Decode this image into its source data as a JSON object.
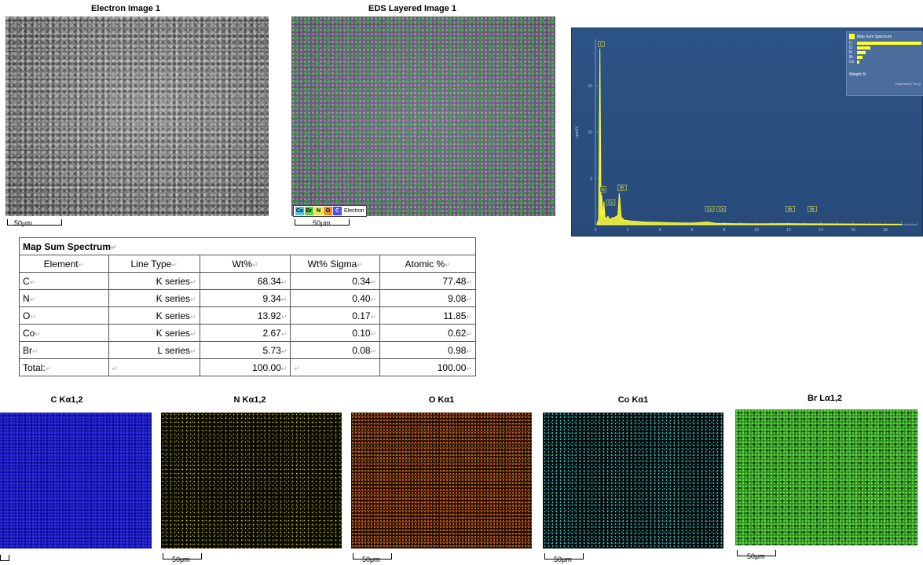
{
  "electron_image": {
    "title": "Electron Image 1",
    "scale": "50μm"
  },
  "eds_image": {
    "title": "EDS Layered Image 1",
    "scale": "50μm",
    "legend": [
      {
        "label": "Co",
        "color": "#49c6e6"
      },
      {
        "label": "Br",
        "color": "#58d24a"
      },
      {
        "label": "N",
        "color": "#e6e65a"
      },
      {
        "label": "O",
        "color": "#f08a2a"
      },
      {
        "label": "C",
        "color": "#4b4bf0"
      }
    ],
    "legend_suffix": "Electron"
  },
  "spectrum": {
    "legend_title": "Map Sum Spectrum",
    "legend_rows": [
      {
        "label": "C",
        "value": 68.34
      },
      {
        "label": "O",
        "value": 13.92
      },
      {
        "label": "N",
        "value": 9.34
      },
      {
        "label": "Br",
        "value": 5.73
      },
      {
        "label": "Co",
        "value": 2.67
      }
    ],
    "legend_axis": "Weight %",
    "legend_footer": "Powered by Tru-Q",
    "ylabel": "cps/eV",
    "yticks": [
      "5",
      "10",
      "15"
    ],
    "xticks": [
      "0",
      "2",
      "4",
      "6",
      "8",
      "10",
      "12",
      "14",
      "16",
      "18"
    ],
    "peak_labels": [
      "C",
      "N",
      "Co",
      "Br",
      "Co",
      "Co",
      "Br",
      "Br"
    ],
    "colors": {
      "bg": "#2a4f80",
      "trace": "#ffff33"
    }
  },
  "chart_data": {
    "type": "line",
    "title": "",
    "xlabel": "",
    "ylabel": "cps/eV",
    "xlim": [
      0,
      20
    ],
    "ylim": [
      0,
      20
    ],
    "x": [
      0.1,
      0.2,
      0.277,
      0.35,
      0.392,
      0.45,
      0.525,
      0.6,
      0.776,
      0.9,
      1.0,
      1.2,
      1.4,
      1.48,
      1.6,
      1.8,
      2.2,
      3.0,
      4.0,
      5.0,
      6.0,
      6.93,
      7.5,
      8.5,
      10.0,
      11.9,
      13.3,
      15.0,
      17.0,
      19.0
    ],
    "y": [
      0.1,
      0.6,
      19.0,
      1.0,
      3.2,
      0.8,
      2.5,
      0.6,
      0.9,
      0.5,
      0.7,
      0.8,
      1.0,
      3.4,
      0.8,
      0.5,
      0.4,
      0.3,
      0.25,
      0.2,
      0.18,
      0.3,
      0.15,
      0.12,
      0.1,
      0.12,
      0.1,
      0.08,
      0.06,
      0.05
    ]
  },
  "table": {
    "title": "Map Sum Spectrum",
    "headers": [
      "Element",
      "Line Type",
      "Wt%",
      "Wt% Sigma",
      "Atomic %"
    ],
    "rows": [
      [
        "C",
        "K series",
        "68.34",
        "0.34",
        "77.48"
      ],
      [
        "N",
        "K series",
        "9.34",
        "0.40",
        "9.08"
      ],
      [
        "O",
        "K series",
        "13.92",
        "0.17",
        "11.85"
      ],
      [
        "Co",
        "K series",
        "2.67",
        "0.10",
        "0.62"
      ],
      [
        "Br",
        "L series",
        "5.73",
        "0.08",
        "0.98"
      ]
    ],
    "total": [
      "Total:",
      "",
      "100.00",
      "",
      "100.00"
    ]
  },
  "maps": [
    {
      "title": "C Kα1,2",
      "scale": ""
    },
    {
      "title": "N Kα1,2",
      "scale": "50μm"
    },
    {
      "title": "O Kα1",
      "scale": "50μm"
    },
    {
      "title": "Co Kα1",
      "scale": "50μm"
    },
    {
      "title": "Br Lα1,2",
      "scale": "50μm"
    }
  ]
}
